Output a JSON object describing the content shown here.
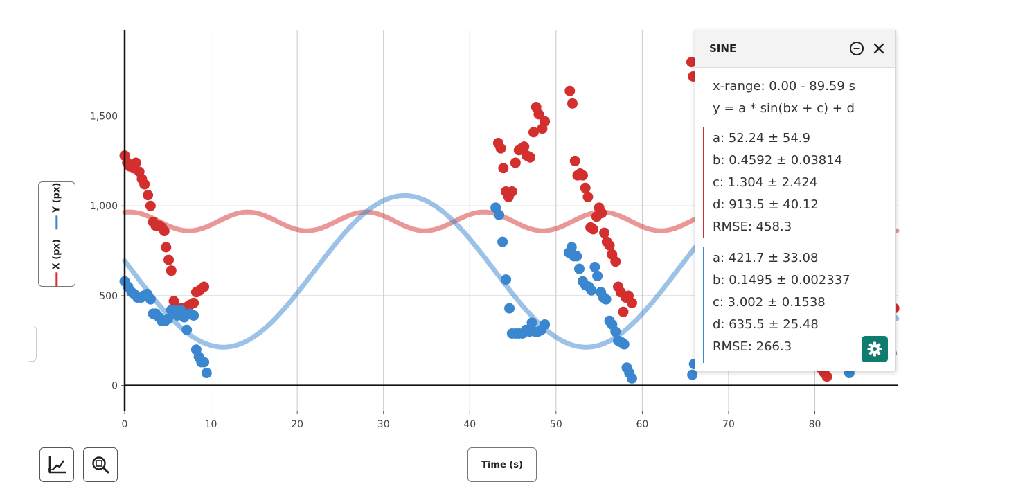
{
  "chart_data": {
    "type": "scatter",
    "xlabel": "Time (s)",
    "ylabel_series": [
      {
        "name": "X (px)",
        "color": "#d32f2f"
      },
      {
        "name": "Y (px)",
        "color": "#3a86cf"
      }
    ],
    "xlim": [
      0,
      89.59
    ],
    "ylim": [
      -140,
      1980
    ],
    "x_ticks": [
      0,
      10,
      20,
      30,
      40,
      50,
      60,
      70,
      80
    ],
    "y_ticks": [
      0,
      500,
      1000,
      1500
    ],
    "y_tick_labels": [
      "0",
      "500",
      "1,000",
      "1,500"
    ],
    "grid": true,
    "series": [
      {
        "name": "X (px)",
        "color": "#d32f2f",
        "points": [
          [
            0,
            1280
          ],
          [
            0.3,
            1240
          ],
          [
            0.6,
            1220
          ],
          [
            1.0,
            1210
          ],
          [
            1.3,
            1240
          ],
          [
            1.7,
            1190
          ],
          [
            2.0,
            1150
          ],
          [
            2.3,
            1120
          ],
          [
            2.7,
            1060
          ],
          [
            3.0,
            1000
          ],
          [
            3.3,
            910
          ],
          [
            3.6,
            890
          ],
          [
            4.0,
            890
          ],
          [
            4.3,
            880
          ],
          [
            4.6,
            860
          ],
          [
            4.8,
            770
          ],
          [
            5.1,
            700
          ],
          [
            5.4,
            640
          ],
          [
            5.7,
            470
          ],
          [
            6.0,
            430
          ],
          [
            6.3,
            400
          ],
          [
            6.6,
            430
          ],
          [
            7.0,
            410
          ],
          [
            7.3,
            440
          ],
          [
            7.6,
            450
          ],
          [
            8.0,
            460
          ],
          [
            8.3,
            520
          ],
          [
            8.7,
            530
          ],
          [
            9.2,
            550
          ],
          [
            43.3,
            1350
          ],
          [
            43.6,
            1320
          ],
          [
            43.9,
            1210
          ],
          [
            44.2,
            1080
          ],
          [
            44.5,
            1050
          ],
          [
            44.9,
            1080
          ],
          [
            45.3,
            1240
          ],
          [
            45.7,
            1310
          ],
          [
            46.0,
            1320
          ],
          [
            46.3,
            1330
          ],
          [
            46.6,
            1280
          ],
          [
            47.0,
            1270
          ],
          [
            47.4,
            1410
          ],
          [
            47.7,
            1550
          ],
          [
            48.0,
            1510
          ],
          [
            48.4,
            1430
          ],
          [
            48.7,
            1470
          ],
          [
            51.6,
            1640
          ],
          [
            51.9,
            1570
          ],
          [
            52.2,
            1250
          ],
          [
            52.5,
            1170
          ],
          [
            52.8,
            1180
          ],
          [
            53.1,
            1170
          ],
          [
            53.4,
            1100
          ],
          [
            53.7,
            1050
          ],
          [
            54.0,
            880
          ],
          [
            54.3,
            870
          ],
          [
            54.7,
            940
          ],
          [
            55.0,
            990
          ],
          [
            55.3,
            960
          ],
          [
            55.6,
            850
          ],
          [
            55.9,
            800
          ],
          [
            56.2,
            780
          ],
          [
            56.5,
            730
          ],
          [
            56.9,
            690
          ],
          [
            57.2,
            550
          ],
          [
            57.5,
            520
          ],
          [
            57.8,
            410
          ],
          [
            58.1,
            490
          ],
          [
            58.4,
            500
          ],
          [
            58.8,
            460
          ],
          [
            65.7,
            1800
          ],
          [
            65.9,
            1720
          ],
          [
            80.6,
            100
          ],
          [
            81.1,
            70
          ],
          [
            81.4,
            50
          ],
          [
            89.2,
            430
          ]
        ]
      },
      {
        "name": "Y (px)",
        "color": "#3a86cf",
        "points": [
          [
            0,
            580
          ],
          [
            0.4,
            550
          ],
          [
            0.8,
            520
          ],
          [
            1.1,
            510
          ],
          [
            1.5,
            490
          ],
          [
            1.9,
            490
          ],
          [
            2.2,
            500
          ],
          [
            2.6,
            510
          ],
          [
            3.0,
            480
          ],
          [
            3.3,
            400
          ],
          [
            3.6,
            400
          ],
          [
            4.0,
            380
          ],
          [
            4.3,
            360
          ],
          [
            4.7,
            360
          ],
          [
            5.0,
            370
          ],
          [
            5.4,
            420
          ],
          [
            5.7,
            420
          ],
          [
            6.1,
            390
          ],
          [
            6.5,
            420
          ],
          [
            6.9,
            380
          ],
          [
            7.2,
            310
          ],
          [
            7.6,
            400
          ],
          [
            8.0,
            390
          ],
          [
            8.3,
            200
          ],
          [
            8.6,
            160
          ],
          [
            8.9,
            130
          ],
          [
            9.2,
            130
          ],
          [
            9.5,
            70
          ],
          [
            43.0,
            990
          ],
          [
            43.4,
            950
          ],
          [
            43.8,
            800
          ],
          [
            44.2,
            590
          ],
          [
            44.6,
            430
          ],
          [
            44.9,
            290
          ],
          [
            45.3,
            290
          ],
          [
            45.7,
            290
          ],
          [
            46.1,
            290
          ],
          [
            46.5,
            310
          ],
          [
            46.9,
            300
          ],
          [
            47.2,
            350
          ],
          [
            47.6,
            300
          ],
          [
            47.9,
            300
          ],
          [
            48.3,
            310
          ],
          [
            48.7,
            340
          ],
          [
            51.5,
            740
          ],
          [
            51.8,
            770
          ],
          [
            52.1,
            720
          ],
          [
            52.4,
            720
          ],
          [
            52.7,
            650
          ],
          [
            53.1,
            580
          ],
          [
            53.4,
            560
          ],
          [
            53.8,
            550
          ],
          [
            54.1,
            530
          ],
          [
            54.5,
            660
          ],
          [
            54.8,
            610
          ],
          [
            55.2,
            520
          ],
          [
            55.5,
            490
          ],
          [
            55.8,
            480
          ],
          [
            56.2,
            360
          ],
          [
            56.5,
            340
          ],
          [
            56.9,
            300
          ],
          [
            57.2,
            250
          ],
          [
            57.6,
            240
          ],
          [
            57.9,
            230
          ],
          [
            58.2,
            100
          ],
          [
            58.5,
            70
          ],
          [
            58.8,
            40
          ],
          [
            65.8,
            60
          ],
          [
            66.0,
            120
          ],
          [
            84.0,
            70
          ],
          [
            88.9,
            180
          ]
        ]
      }
    ],
    "fits": [
      {
        "series": "X (px)",
        "a": 52.24,
        "b": 0.4592,
        "c": 1.304,
        "d": 913.5
      },
      {
        "series": "Y (px)",
        "a": 421.7,
        "b": 0.1495,
        "c": 3.002,
        "d": 635.5
      }
    ]
  },
  "axes": {
    "y_button": {
      "labels": [
        {
          "text": "X (px)",
          "color": "#d32f2f"
        },
        {
          "text": "Y (px)",
          "color": "#3a86cf"
        }
      ]
    },
    "x_button": {
      "label": "Time (s)"
    }
  },
  "fit_panel": {
    "title": "SINE",
    "x_range": "x-range: 0.00 - 89.59 s",
    "equation": "y = a * sin(bx + c) + d",
    "groups": [
      {
        "color": "#d32f2f",
        "lines": [
          "a: 52.24 ± 54.9",
          "b: 0.4592 ± 0.03814",
          "c: 1.304 ± 2.424",
          "d: 913.5 ± 40.12",
          "RMSE: 458.3"
        ]
      },
      {
        "color": "#3a86cf",
        "lines": [
          "a: 421.7 ± 33.08",
          "b: 0.1495 ± 0.002337",
          "c: 3.002 ± 0.1538",
          "d: 635.5 ± 25.48",
          "RMSE: 266.3"
        ]
      }
    ],
    "minimize_icon": "minus-circle-icon",
    "close_icon": "close-icon",
    "settings_icon": "gear-icon",
    "accent_color": "#107b6f"
  },
  "toolbar": {
    "fit_tool_icon": "curve-fit-icon",
    "zoom_tool_icon": "zoom-fit-icon"
  }
}
